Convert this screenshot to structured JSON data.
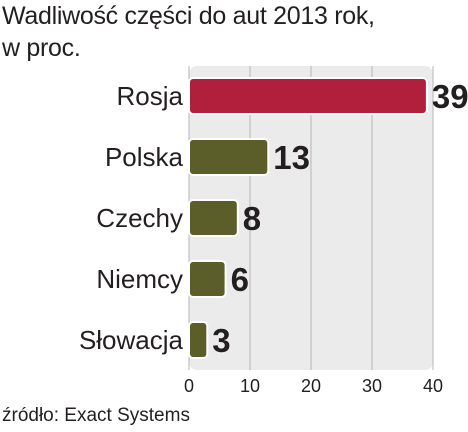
{
  "title_line1": "Wadliwość części do aut 2013 rok,",
  "title_line2": "w proc.",
  "source": "źródło: Exact Systems",
  "colors": {
    "highlight_bar": "#b0203c",
    "bar": "#5c5e2a",
    "panel_background": "#ebebeb",
    "grid": "#b5b5b5",
    "text": "#231f20"
  },
  "chart_data": {
    "type": "bar",
    "orientation": "horizontal",
    "categories": [
      "Rosja",
      "Polska",
      "Czechy",
      "Niemcy",
      "Słowacja"
    ],
    "values": [
      39,
      13,
      8,
      6,
      3
    ],
    "highlight_index": 0,
    "xlim": [
      0,
      40
    ],
    "xticks": [
      "0",
      "10",
      "20",
      "30",
      "40"
    ],
    "grid": true
  }
}
